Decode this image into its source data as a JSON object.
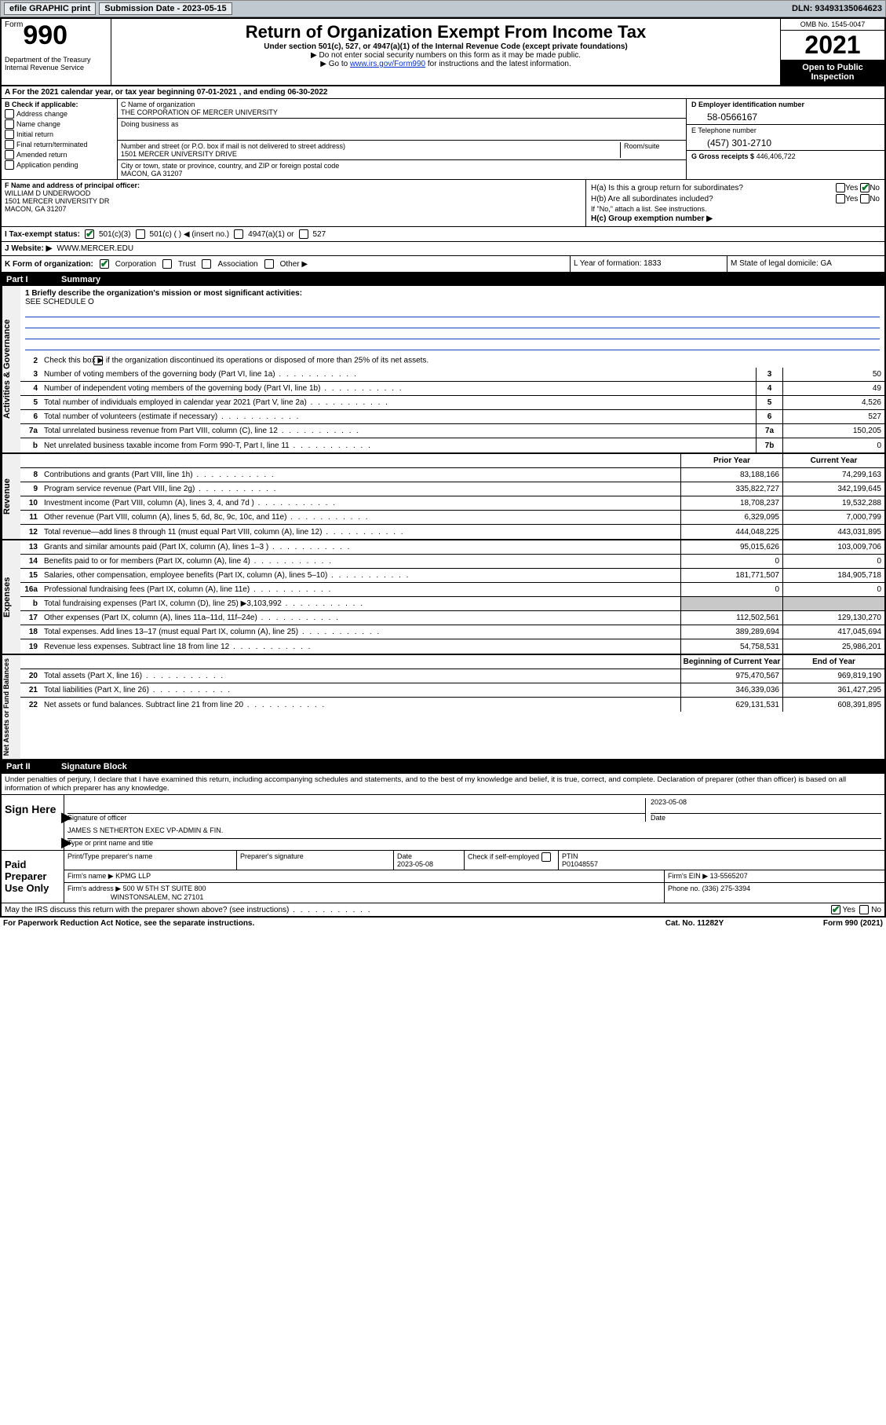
{
  "topbar": {
    "efile": "efile GRAPHIC print",
    "submission": "Submission Date - 2023-05-15",
    "dln": "DLN: 93493135064623"
  },
  "header": {
    "form_prefix": "Form",
    "form_number": "990",
    "title": "Return of Organization Exempt From Income Tax",
    "subtitle": "Under section 501(c), 527, or 4947(a)(1) of the Internal Revenue Code (except private foundations)",
    "instr1": "▶ Do not enter social security numbers on this form as it may be made public.",
    "instr2_pre": "▶ Go to ",
    "instr2_link": "www.irs.gov/Form990",
    "instr2_post": " for instructions and the latest information.",
    "dept": "Department of the Treasury\nInternal Revenue Service",
    "omb": "OMB No. 1545-0047",
    "year": "2021",
    "open": "Open to Public Inspection"
  },
  "row_a": "A For the 2021 calendar year, or tax year beginning 07-01-2021   , and ending 06-30-2022",
  "section_b": {
    "label": "B Check if applicable:",
    "items": [
      "Address change",
      "Name change",
      "Initial return",
      "Final return/terminated",
      "Amended return",
      "Application pending"
    ]
  },
  "section_c": {
    "name_label": "C Name of organization",
    "name": "THE CORPORATION OF MERCER UNIVERSITY",
    "dba_label": "Doing business as",
    "dba": "",
    "street_label": "Number and street (or P.O. box if mail is not delivered to street address)",
    "room_label": "Room/suite",
    "street": "1501 MERCER UNIVERSITY DRIVE",
    "city_label": "City or town, state or province, country, and ZIP or foreign postal code",
    "city": "MACON, GA  31207"
  },
  "section_d": {
    "label": "D Employer identification number",
    "value": "58-0566167"
  },
  "section_e": {
    "label": "E Telephone number",
    "value": "(457) 301-2710"
  },
  "section_g": {
    "label": "G Gross receipts $",
    "value": "446,406,722"
  },
  "section_f": {
    "label": "F Name and address of principal officer:",
    "name": "WILLIAM D UNDERWOOD",
    "addr1": "1501 MERCER UNIVERSITY DR",
    "addr2": "MACON, GA  31207"
  },
  "section_h": {
    "ha": "H(a)  Is this a group return for subordinates?",
    "hb": "H(b)  Are all subordinates included?",
    "hb_note": "If \"No,\" attach a list. See instructions.",
    "hc": "H(c)  Group exemption number ▶",
    "yes": "Yes",
    "no": "No"
  },
  "row_i": {
    "label": "I    Tax-exempt status:",
    "opt1": "501(c)(3)",
    "opt2": "501(c) (  ) ◀ (insert no.)",
    "opt3": "4947(a)(1) or",
    "opt4": "527"
  },
  "row_j": {
    "label": "J    Website: ▶",
    "value": "WWW.MERCER.EDU"
  },
  "row_k": {
    "label": "K Form of organization:",
    "opts": [
      "Corporation",
      "Trust",
      "Association",
      "Other ▶"
    ]
  },
  "row_l": "L Year of formation: 1833",
  "row_m": "M State of legal domicile: GA",
  "part1": {
    "header_no": "Part I",
    "header_title": "Summary",
    "mission_label": "1  Briefly describe the organization's mission or most significant activities:",
    "mission": "SEE SCHEDULE O",
    "line2": "Check this box ▶       if the organization discontinued its operations or disposed of more than 25% of its net assets.",
    "lines_simple": [
      {
        "num": "3",
        "desc": "Number of voting members of the governing body (Part VI, line 1a)",
        "box": "3",
        "val": "50"
      },
      {
        "num": "4",
        "desc": "Number of independent voting members of the governing body (Part VI, line 1b)",
        "box": "4",
        "val": "49"
      },
      {
        "num": "5",
        "desc": "Total number of individuals employed in calendar year 2021 (Part V, line 2a)",
        "box": "5",
        "val": "4,526"
      },
      {
        "num": "6",
        "desc": "Total number of volunteers (estimate if necessary)",
        "box": "6",
        "val": "527"
      },
      {
        "num": "7a",
        "desc": "Total unrelated business revenue from Part VIII, column (C), line 12",
        "box": "7a",
        "val": "150,205"
      },
      {
        "num": "b",
        "desc": "Net unrelated business taxable income from Form 990-T, Part I, line 11",
        "box": "7b",
        "val": "0"
      }
    ],
    "col_headers": {
      "prior": "Prior Year",
      "current": "Current Year",
      "begin": "Beginning of Current Year",
      "end": "End of Year"
    },
    "revenue": [
      {
        "num": "8",
        "desc": "Contributions and grants (Part VIII, line 1h)",
        "prior": "83,188,166",
        "curr": "74,299,163"
      },
      {
        "num": "9",
        "desc": "Program service revenue (Part VIII, line 2g)",
        "prior": "335,822,727",
        "curr": "342,199,645"
      },
      {
        "num": "10",
        "desc": "Investment income (Part VIII, column (A), lines 3, 4, and 7d )",
        "prior": "18,708,237",
        "curr": "19,532,288"
      },
      {
        "num": "11",
        "desc": "Other revenue (Part VIII, column (A), lines 5, 6d, 8c, 9c, 10c, and 11e)",
        "prior": "6,329,095",
        "curr": "7,000,799"
      },
      {
        "num": "12",
        "desc": "Total revenue—add lines 8 through 11 (must equal Part VIII, column (A), line 12)",
        "prior": "444,048,225",
        "curr": "443,031,895"
      }
    ],
    "expenses": [
      {
        "num": "13",
        "desc": "Grants and similar amounts paid (Part IX, column (A), lines 1–3 )",
        "prior": "95,015,626",
        "curr": "103,009,706"
      },
      {
        "num": "14",
        "desc": "Benefits paid to or for members (Part IX, column (A), line 4)",
        "prior": "0",
        "curr": "0"
      },
      {
        "num": "15",
        "desc": "Salaries, other compensation, employee benefits (Part IX, column (A), lines 5–10)",
        "prior": "181,771,507",
        "curr": "184,905,718"
      },
      {
        "num": "16a",
        "desc": "Professional fundraising fees (Part IX, column (A), line 11e)",
        "prior": "0",
        "curr": "0"
      },
      {
        "num": "b",
        "desc": "Total fundraising expenses (Part IX, column (D), line 25) ▶3,103,992",
        "prior": "",
        "curr": "",
        "shaded": true
      },
      {
        "num": "17",
        "desc": "Other expenses (Part IX, column (A), lines 11a–11d, 11f–24e)",
        "prior": "112,502,561",
        "curr": "129,130,270"
      },
      {
        "num": "18",
        "desc": "Total expenses. Add lines 13–17 (must equal Part IX, column (A), line 25)",
        "prior": "389,289,694",
        "curr": "417,045,694"
      },
      {
        "num": "19",
        "desc": "Revenue less expenses. Subtract line 18 from line 12",
        "prior": "54,758,531",
        "curr": "25,986,201"
      }
    ],
    "netassets": [
      {
        "num": "20",
        "desc": "Total assets (Part X, line 16)",
        "prior": "975,470,567",
        "curr": "969,819,190"
      },
      {
        "num": "21",
        "desc": "Total liabilities (Part X, line 26)",
        "prior": "346,339,036",
        "curr": "361,427,295"
      },
      {
        "num": "22",
        "desc": "Net assets or fund balances. Subtract line 21 from line 20",
        "prior": "629,131,531",
        "curr": "608,391,895"
      }
    ],
    "side_labels": {
      "gov": "Activities & Governance",
      "rev": "Revenue",
      "exp": "Expenses",
      "net": "Net Assets or Fund Balances"
    }
  },
  "part2": {
    "header_no": "Part II",
    "header_title": "Signature Block",
    "declaration": "Under penalties of perjury, I declare that I have examined this return, including accompanying schedules and statements, and to the best of my knowledge and belief, it is true, correct, and complete. Declaration of preparer (other than officer) is based on all information of which preparer has any knowledge.",
    "sign_here": "Sign Here",
    "sig_officer": "Signature of officer",
    "date": "Date",
    "sig_date": "2023-05-08",
    "officer_name": "JAMES S NETHERTON  EXEC VP-ADMIN & FIN.",
    "type_name": "Type or print name and title",
    "paid_prep": "Paid Preparer Use Only",
    "prep_hdr": [
      "Print/Type preparer's name",
      "Preparer's signature",
      "Date",
      "",
      "PTIN"
    ],
    "prep_date": "2023-05-08",
    "self_emp": "Check        if self-employed",
    "ptin": "P01048557",
    "firm_name_lbl": "Firm's name    ▶",
    "firm_name": "KPMG LLP",
    "firm_ein_lbl": "Firm's EIN ▶",
    "firm_ein": "13-5565207",
    "firm_addr_lbl": "Firm's address ▶",
    "firm_addr": "500 W 5TH ST SUITE 800",
    "firm_city": "WINSTONSALEM, NC  27101",
    "phone_lbl": "Phone no.",
    "phone": "(336) 275-3394"
  },
  "footer": {
    "discuss": "May the IRS discuss this return with the preparer shown above? (see instructions)",
    "yes": "Yes",
    "no": "No",
    "paperwork": "For Paperwork Reduction Act Notice, see the separate instructions.",
    "catno": "Cat. No. 11282Y",
    "formno": "Form 990 (2021)"
  }
}
